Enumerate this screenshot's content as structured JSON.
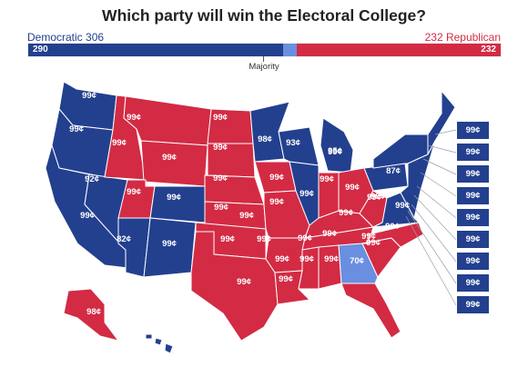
{
  "title": "Which party will win the Electoral College?",
  "legend": {
    "democratic": "Democratic 306",
    "republican": "232 Republican",
    "majority": "Majority"
  },
  "bar": {
    "total_votes": 538,
    "dem_value": 290,
    "dem_label": "290",
    "tossup_value": 16,
    "rep_value": 232,
    "rep_label": "232"
  },
  "colors": {
    "democratic": "#23408f",
    "republican": "#d32b44",
    "tossup": "#6a8fe0",
    "border": "#ffffff"
  },
  "map": {
    "labels": [
      "99¢",
      "99¢",
      "99¢",
      "99¢",
      "98¢",
      "93¢",
      "99¢",
      "99¢",
      "99¢",
      "95¢",
      "99¢",
      "92¢",
      "99¢",
      "99¢",
      "99¢",
      "87¢",
      "99¢",
      "99¢",
      "99¢",
      "99¢",
      "99¢",
      "99¢",
      "99¢",
      "99¢",
      "99¢",
      "99¢",
      "99¢",
      "99¢",
      "82¢",
      "99¢",
      "99¢",
      "99¢",
      "99¢",
      "99¢",
      "99¢",
      "90¢",
      "99¢",
      "99¢",
      "99¢",
      "99¢",
      "99¢",
      "70¢",
      "99¢",
      "98¢",
      "99¢"
    ],
    "northeast_boxes": [
      "99¢",
      "99¢",
      "99¢",
      "99¢",
      "99¢",
      "99¢",
      "99¢",
      "99¢",
      "99¢"
    ]
  }
}
